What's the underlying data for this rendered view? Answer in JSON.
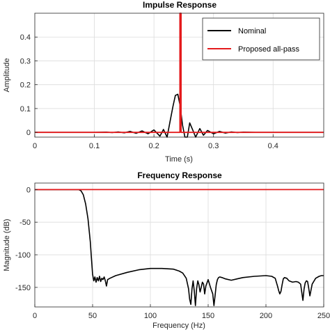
{
  "chart_data": [
    {
      "type": "line",
      "title": "Impulse Response",
      "xlabel": "Time (s)",
      "ylabel": "Amplitude",
      "xlim": [
        0,
        0.485
      ],
      "ylim": [
        -0.02,
        0.5
      ],
      "xticks": [
        0,
        0.1,
        0.2,
        0.3,
        0.4
      ],
      "xtick_labels": [
        "0",
        "0.1",
        "0.2",
        "0.3",
        "0.4"
      ],
      "yticks": [
        0,
        0.1,
        0.2,
        0.3,
        0.4
      ],
      "ytick_labels": [
        "0",
        "0.1",
        "0.2",
        "0.3",
        "0.4"
      ],
      "grid": true,
      "legend_position": "top-right",
      "series": [
        {
          "name": "Nominal",
          "color": "#000000",
          "x": [
            0,
            0.1,
            0.12,
            0.13,
            0.14,
            0.15,
            0.16,
            0.17,
            0.18,
            0.19,
            0.2,
            0.21,
            0.216,
            0.222,
            0.227,
            0.232,
            0.236,
            0.24,
            0.244,
            0.248,
            0.252,
            0.256,
            0.26,
            0.265,
            0.27,
            0.277,
            0.283,
            0.29,
            0.3,
            0.31,
            0.32,
            0.33,
            0.34,
            0.35,
            0.37,
            0.485
          ],
          "y": [
            0,
            0,
            0.001,
            -0.001,
            0.002,
            -0.002,
            0.004,
            -0.004,
            0.006,
            -0.006,
            0.01,
            -0.016,
            0.012,
            -0.032,
            0.045,
            0.11,
            0.155,
            0.16,
            0.11,
            0.03,
            -0.05,
            -0.02,
            0.04,
            0.01,
            -0.03,
            0.016,
            -0.012,
            0.008,
            -0.006,
            0.004,
            -0.003,
            0.002,
            -0.001,
            0.001,
            0,
            0
          ]
        },
        {
          "name": "Proposed all-pass",
          "color": "#e41a1c",
          "x": [
            0,
            0.2435,
            0.2435,
            0.2455,
            0.2455,
            0.485
          ],
          "y": [
            0,
            0,
            0.52,
            0.52,
            0,
            0
          ]
        }
      ]
    },
    {
      "type": "line",
      "title": "Frequency Response",
      "xlabel": "Frequency (Hz)",
      "ylabel": "Magnitude (dB)",
      "xlim": [
        0,
        250
      ],
      "ylim": [
        -180,
        10
      ],
      "xticks": [
        0,
        50,
        100,
        150,
        200,
        250
      ],
      "xtick_labels": [
        "0",
        "50",
        "100",
        "150",
        "200",
        "250"
      ],
      "yticks": [
        0,
        -50,
        -100,
        -150
      ],
      "ytick_labels": [
        "0",
        "-50",
        "-100",
        "-150"
      ],
      "grid": true,
      "series": [
        {
          "name": "Nominal",
          "color": "#000000",
          "x": [
            0,
            38,
            40,
            42,
            44,
            46,
            48,
            49,
            50,
            51,
            52,
            53,
            54,
            55,
            56,
            57,
            58,
            59,
            60,
            61,
            62,
            63,
            65,
            70,
            80,
            90,
            100,
            110,
            120,
            125,
            128,
            131,
            133,
            134,
            135,
            136,
            137,
            138,
            139,
            140,
            141,
            142,
            143,
            144,
            145,
            146,
            147,
            148,
            150,
            152,
            154,
            155,
            156,
            157,
            158,
            159,
            160,
            162,
            165,
            170,
            175,
            180,
            190,
            200,
            205,
            208,
            210,
            211,
            212,
            213,
            214,
            215,
            216,
            218,
            220,
            223,
            226,
            228,
            230,
            231,
            232,
            233,
            234,
            235,
            236,
            237,
            238,
            240,
            243,
            246,
            248,
            250
          ],
          "y": [
            0,
            0,
            -2,
            -8,
            -22,
            -45,
            -80,
            -105,
            -130,
            -140,
            -134,
            -142,
            -135,
            -140,
            -133,
            -141,
            -136,
            -138,
            -134,
            -140,
            -148,
            -138,
            -136,
            -132,
            -127,
            -123,
            -121,
            -121,
            -122,
            -125,
            -128,
            -136,
            -152,
            -168,
            -176,
            -152,
            -140,
            -156,
            -178,
            -152,
            -140,
            -146,
            -157,
            -150,
            -142,
            -145,
            -160,
            -148,
            -138,
            -150,
            -160,
            -178,
            -162,
            -146,
            -138,
            -135,
            -134,
            -135,
            -137,
            -139,
            -137,
            -135,
            -133,
            -132,
            -133,
            -136,
            -148,
            -155,
            -160,
            -156,
            -146,
            -137,
            -135,
            -136,
            -140,
            -142,
            -141,
            -142,
            -145,
            -158,
            -170,
            -152,
            -143,
            -140,
            -141,
            -151,
            -163,
            -145,
            -136,
            -133,
            -132,
            -132
          ]
        },
        {
          "name": "Proposed all-pass",
          "color": "#e41a1c",
          "x": [
            0,
            250
          ],
          "y": [
            0,
            0
          ]
        }
      ]
    }
  ]
}
